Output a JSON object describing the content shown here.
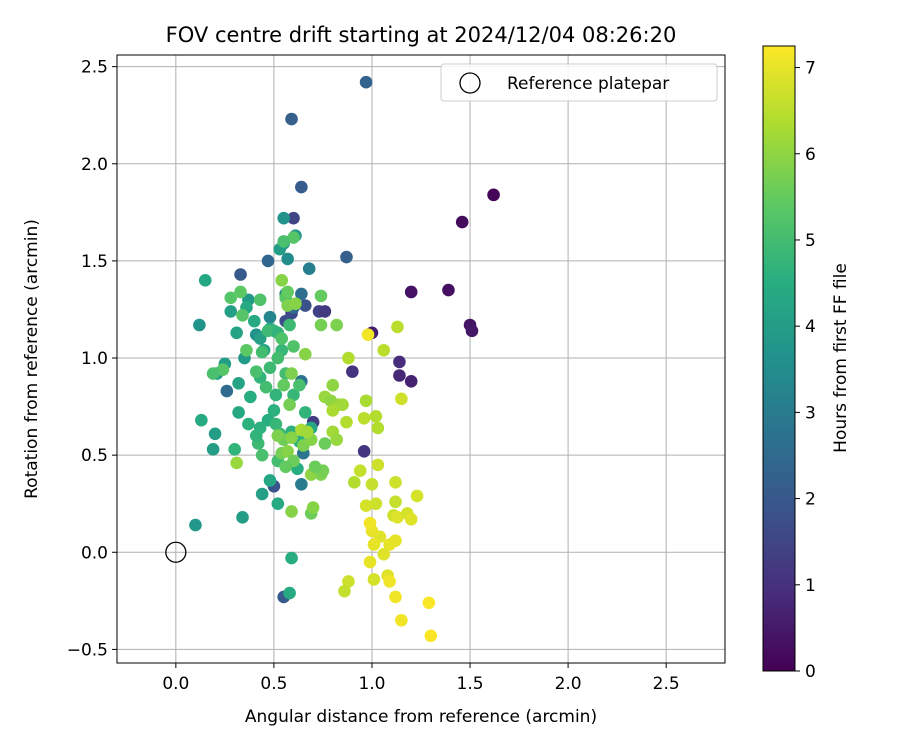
{
  "chart_data": {
    "type": "scatter",
    "title": "FOV centre drift starting at 2024/12/04 08:26:20",
    "xlabel": "Angular distance from reference (arcmin)",
    "ylabel": "Rotation from reference (arcmin)",
    "xlim": [
      -0.3,
      2.8
    ],
    "ylim": [
      -0.57,
      2.56
    ],
    "xticks": [
      0.0,
      0.5,
      1.0,
      1.5,
      2.0,
      2.5
    ],
    "xtick_labels": [
      "0.0",
      "0.5",
      "1.0",
      "1.5",
      "2.0",
      "2.5"
    ],
    "yticks": [
      -0.5,
      0.0,
      0.5,
      1.0,
      1.5,
      2.0,
      2.5
    ],
    "ytick_labels": [
      "−0.5",
      "0.0",
      "0.5",
      "1.0",
      "1.5",
      "2.0",
      "2.5"
    ],
    "grid": true,
    "legend": {
      "position": "top-right",
      "label": "Reference platepar"
    },
    "reference_point": {
      "x": 0.0,
      "y": 0.0
    },
    "colorbar": {
      "label": "Hours from first FF file",
      "colormap": "viridis",
      "min": 0,
      "max": 7.25,
      "ticks": [
        0,
        1,
        2,
        3,
        4,
        5,
        6,
        7
      ],
      "tick_labels": [
        "0",
        "1",
        "2",
        "3",
        "4",
        "5",
        "6",
        "7"
      ]
    },
    "points": [
      [
        1.62,
        1.84,
        0.1
      ],
      [
        1.46,
        1.7,
        0.2
      ],
      [
        1.39,
        1.35,
        0.3
      ],
      [
        1.2,
        1.34,
        0.35
      ],
      [
        1.5,
        1.17,
        0.4
      ],
      [
        1.51,
        1.14,
        0.45
      ],
      [
        1.0,
        1.13,
        0.6
      ],
      [
        1.14,
        0.98,
        0.9
      ],
      [
        1.14,
        0.91,
        0.8
      ],
      [
        1.2,
        0.88,
        0.7
      ],
      [
        0.9,
        0.93,
        1.1
      ],
      [
        0.96,
        0.52,
        1.1
      ],
      [
        0.7,
        0.67,
        1.3
      ],
      [
        0.73,
        1.24,
        1.4
      ],
      [
        0.76,
        1.24,
        1.2
      ],
      [
        0.6,
        1.72,
        1.5
      ],
      [
        0.59,
        1.23,
        1.6
      ],
      [
        0.56,
        1.19,
        1.7
      ],
      [
        0.66,
        1.27,
        1.8
      ],
      [
        0.5,
        0.34,
        1.9
      ],
      [
        0.55,
        -0.23,
        2.0
      ],
      [
        0.64,
        1.88,
        2.1
      ],
      [
        0.59,
        2.23,
        2.2
      ],
      [
        0.97,
        2.42,
        2.3
      ],
      [
        0.87,
        1.52,
        2.2
      ],
      [
        0.47,
        1.5,
        2.4
      ],
      [
        0.33,
        1.43,
        2.0
      ],
      [
        0.26,
        0.83,
        2.5
      ],
      [
        0.6,
        1.26,
        2.5
      ],
      [
        0.64,
        1.33,
        2.6
      ],
      [
        0.64,
        0.88,
        2.7
      ],
      [
        0.65,
        0.51,
        2.8
      ],
      [
        0.64,
        0.35,
        3.0
      ],
      [
        0.68,
        1.46,
        3.1
      ],
      [
        0.48,
        1.21,
        3.3
      ],
      [
        0.56,
        1.33,
        3.3
      ],
      [
        0.57,
        1.51,
        3.5
      ],
      [
        0.55,
        1.72,
        3.7
      ],
      [
        0.61,
        1.63,
        3.8
      ],
      [
        0.55,
        1.59,
        3.9
      ],
      [
        0.53,
        1.56,
        4.0
      ],
      [
        0.37,
        1.3,
        3.9
      ],
      [
        0.41,
        1.12,
        3.7
      ],
      [
        0.35,
        1.0,
        3.9
      ],
      [
        0.43,
        1.1,
        4.1
      ],
      [
        0.45,
        1.04,
        4.2
      ],
      [
        0.48,
        1.15,
        4.3
      ],
      [
        0.4,
        1.19,
        4.4
      ],
      [
        0.36,
        1.26,
        4.4
      ],
      [
        0.28,
        1.24,
        4.1
      ],
      [
        0.31,
        1.13,
        4.2
      ],
      [
        0.12,
        1.17,
        3.7
      ],
      [
        0.15,
        1.4,
        4.3
      ],
      [
        0.21,
        0.92,
        4.1
      ],
      [
        0.25,
        0.97,
        4.0
      ],
      [
        0.32,
        0.87,
        4.2
      ],
      [
        0.32,
        0.72,
        4.3
      ],
      [
        0.2,
        0.61,
        4.0
      ],
      [
        0.19,
        0.53,
        4.0
      ],
      [
        0.13,
        0.68,
        4.4
      ],
      [
        0.1,
        0.14,
        3.8
      ],
      [
        0.34,
        0.18,
        4.0
      ],
      [
        0.44,
        0.3,
        4.1
      ],
      [
        0.48,
        0.37,
        4.3
      ],
      [
        0.52,
        0.25,
        4.4
      ],
      [
        0.58,
        -0.21,
        4.4
      ],
      [
        0.59,
        -0.03,
        4.5
      ],
      [
        0.62,
        0.43,
        4.5
      ],
      [
        0.59,
        0.62,
        4.6
      ],
      [
        0.63,
        0.57,
        4.6
      ],
      [
        0.66,
        0.72,
        4.7
      ],
      [
        0.69,
        0.64,
        4.3
      ],
      [
        0.5,
        0.73,
        4.6
      ],
      [
        0.47,
        0.68,
        4.5
      ],
      [
        0.51,
        0.66,
        4.8
      ],
      [
        0.43,
        0.64,
        4.6
      ],
      [
        0.42,
        0.56,
        4.9
      ],
      [
        0.44,
        0.5,
        5.1
      ],
      [
        0.52,
        0.47,
        5.0
      ],
      [
        0.53,
        0.61,
        4.9
      ],
      [
        0.37,
        0.66,
        4.6
      ],
      [
        0.41,
        0.6,
        4.7
      ],
      [
        0.3,
        0.53,
        4.7
      ],
      [
        0.38,
        0.8,
        4.5
      ],
      [
        0.43,
        0.9,
        4.7
      ],
      [
        0.46,
        0.85,
        5.0
      ],
      [
        0.51,
        0.81,
        4.7
      ],
      [
        0.6,
        0.81,
        4.8
      ],
      [
        0.63,
        0.86,
        5.1
      ],
      [
        0.56,
        0.92,
        5.0
      ],
      [
        0.54,
        1.04,
        4.8
      ],
      [
        0.6,
        1.06,
        5.2
      ],
      [
        0.52,
        1.0,
        5.0
      ],
      [
        0.48,
        0.95,
        4.9
      ],
      [
        0.41,
        0.93,
        5.1
      ],
      [
        0.44,
        1.03,
        5.0
      ],
      [
        0.5,
        1.14,
        4.8
      ],
      [
        0.47,
        1.14,
        4.9
      ],
      [
        0.52,
        1.13,
        4.7
      ],
      [
        0.54,
        1.1,
        5.2
      ],
      [
        0.58,
        1.17,
        4.9
      ],
      [
        0.56,
        1.31,
        5.3
      ],
      [
        0.6,
        1.62,
        5.3
      ],
      [
        0.55,
        1.6,
        5.1
      ],
      [
        0.43,
        1.3,
        5.2
      ],
      [
        0.28,
        1.31,
        5.3
      ],
      [
        0.33,
        1.34,
        5.4
      ],
      [
        0.34,
        1.22,
        5.3
      ],
      [
        0.24,
        0.94,
        5.3
      ],
      [
        0.19,
        0.92,
        5.1
      ],
      [
        0.36,
        1.04,
        5.4
      ],
      [
        0.74,
        1.32,
        5.5
      ],
      [
        0.74,
        1.17,
        5.7
      ],
      [
        0.82,
        1.17,
        5.8
      ],
      [
        0.54,
        1.4,
        5.9
      ],
      [
        0.57,
        1.27,
        5.8
      ],
      [
        0.61,
        1.28,
        5.9
      ],
      [
        0.57,
        1.34,
        5.5
      ],
      [
        0.66,
        1.02,
        5.9
      ],
      [
        0.59,
        0.92,
        5.8
      ],
      [
        0.55,
        0.86,
        5.5
      ],
      [
        0.58,
        0.76,
        5.7
      ],
      [
        0.55,
        0.58,
        5.6
      ],
      [
        0.54,
        0.51,
        5.7
      ],
      [
        0.57,
        0.52,
        5.9
      ],
      [
        0.52,
        0.6,
        5.8
      ],
      [
        0.6,
        0.47,
        5.6
      ],
      [
        0.59,
        0.59,
        5.9
      ],
      [
        0.56,
        0.44,
        5.5
      ],
      [
        0.59,
        0.21,
        5.9
      ],
      [
        0.69,
        0.2,
        5.6
      ],
      [
        0.7,
        0.23,
        5.9
      ],
      [
        0.69,
        0.4,
        6.0
      ],
      [
        0.74,
        0.4,
        5.8
      ],
      [
        0.75,
        0.42,
        5.7
      ],
      [
        0.71,
        0.44,
        5.6
      ],
      [
        0.65,
        0.55,
        5.8
      ],
      [
        0.69,
        0.58,
        5.9
      ],
      [
        0.76,
        0.56,
        5.6
      ],
      [
        0.76,
        0.8,
        6.1
      ],
      [
        0.79,
        0.78,
        6.0
      ],
      [
        0.83,
        0.76,
        6.1
      ],
      [
        0.85,
        0.76,
        6.2
      ],
      [
        0.8,
        0.86,
        6.0
      ],
      [
        0.8,
        0.73,
        6.3
      ],
      [
        0.8,
        0.62,
        6.2
      ],
      [
        0.87,
        0.67,
        6.4
      ],
      [
        0.82,
        0.58,
        6.1
      ],
      [
        0.64,
        0.63,
        6.3
      ],
      [
        0.67,
        0.62,
        6.2
      ],
      [
        0.31,
        0.46,
        6.1
      ],
      [
        0.88,
        1.0,
        6.4
      ],
      [
        0.97,
        0.78,
        6.3
      ],
      [
        1.02,
        0.7,
        6.4
      ],
      [
        0.96,
        0.69,
        6.5
      ],
      [
        1.03,
        0.64,
        6.4
      ],
      [
        1.06,
        1.04,
        6.5
      ],
      [
        1.13,
        1.16,
        6.5
      ],
      [
        1.15,
        0.79,
        6.7
      ],
      [
        1.03,
        0.45,
        6.7
      ],
      [
        1.0,
        0.35,
        6.6
      ],
      [
        1.12,
        0.36,
        6.7
      ],
      [
        1.12,
        0.26,
        6.6
      ],
      [
        1.11,
        0.19,
        6.7
      ],
      [
        1.02,
        0.25,
        6.7
      ],
      [
        0.97,
        0.24,
        6.8
      ],
      [
        0.91,
        0.36,
        6.4
      ],
      [
        0.94,
        0.42,
        6.6
      ],
      [
        1.18,
        0.2,
        6.8
      ],
      [
        1.2,
        0.17,
        6.9
      ],
      [
        1.23,
        0.29,
        6.8
      ],
      [
        1.13,
        0.18,
        6.9
      ],
      [
        1.12,
        0.06,
        7.0
      ],
      [
        1.09,
        0.04,
        7.0
      ],
      [
        1.04,
        0.08,
        6.9
      ],
      [
        1.0,
        0.11,
        7.0
      ],
      [
        0.99,
        0.15,
        7.1
      ],
      [
        1.01,
        0.04,
        7.0
      ],
      [
        1.06,
        -0.01,
        6.9
      ],
      [
        0.99,
        -0.05,
        7.0
      ],
      [
        1.01,
        -0.14,
        6.8
      ],
      [
        1.08,
        -0.12,
        6.9
      ],
      [
        1.09,
        -0.15,
        7.1
      ],
      [
        1.12,
        -0.23,
        7.1
      ],
      [
        0.88,
        -0.15,
        6.7
      ],
      [
        0.86,
        -0.2,
        6.6
      ],
      [
        1.15,
        -0.35,
        7.1
      ],
      [
        1.29,
        -0.26,
        7.2
      ],
      [
        1.3,
        -0.43,
        7.2
      ],
      [
        0.98,
        1.12,
        7.1
      ]
    ]
  }
}
